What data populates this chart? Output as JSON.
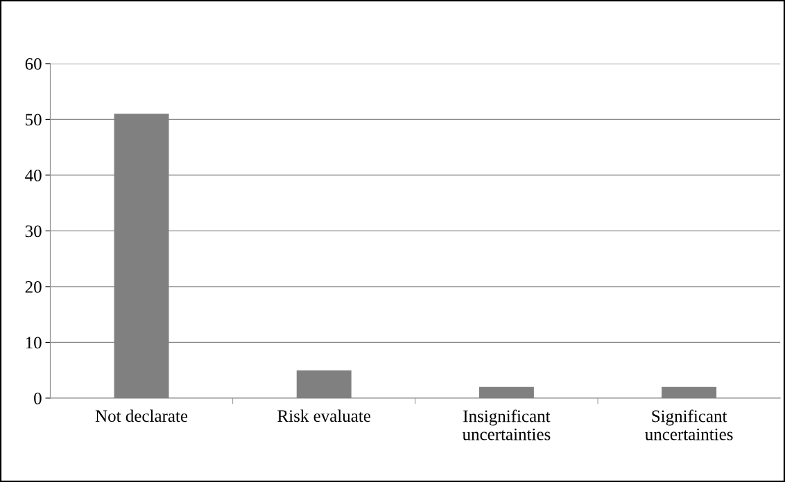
{
  "chart_data": {
    "type": "bar",
    "categories": [
      "Not declarate",
      "Risk evaluate",
      "Insignificant\nuncertainties",
      "Significant\nuncertainties"
    ],
    "values": [
      51,
      5,
      2,
      2
    ],
    "color": "#808080",
    "ylim": [
      0,
      60
    ],
    "yticks": [
      0,
      10,
      20,
      30,
      40,
      50,
      60
    ],
    "grid": "y"
  }
}
